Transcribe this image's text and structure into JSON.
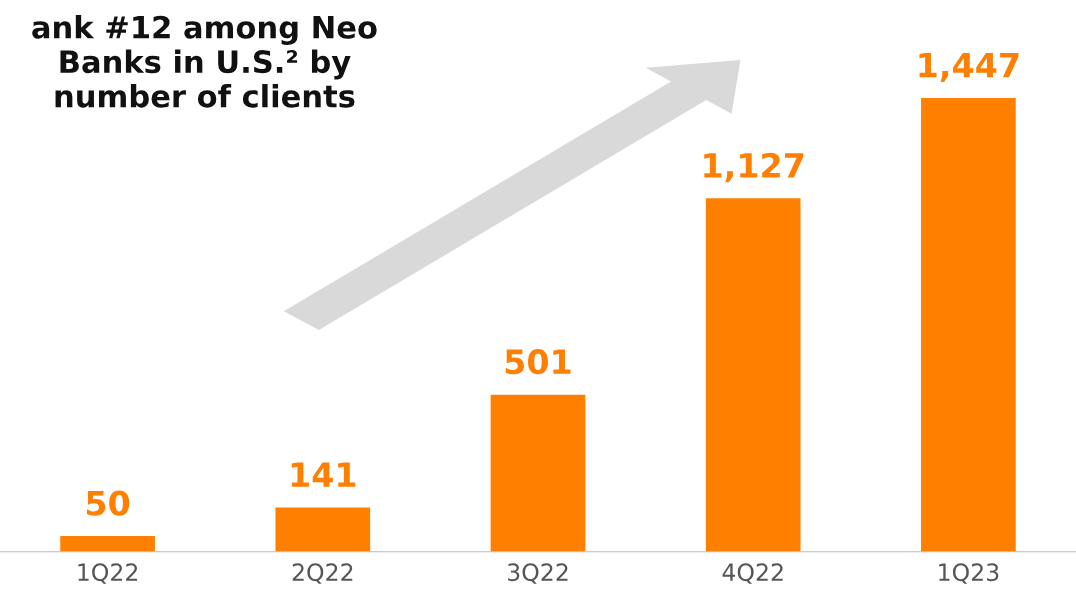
{
  "chart_data": {
    "type": "bar",
    "title": "ank #12 among Neo\nBanks in U.S.² by\nnumber of clients",
    "categories": [
      "1Q22",
      "2Q22",
      "3Q22",
      "4Q22",
      "1Q23"
    ],
    "values": [
      50,
      141,
      501,
      1127,
      1447
    ],
    "value_labels": [
      "50",
      "141",
      "501",
      "1,127",
      "1,447"
    ],
    "color": "#ff7f00",
    "grid": false,
    "legend": false
  }
}
